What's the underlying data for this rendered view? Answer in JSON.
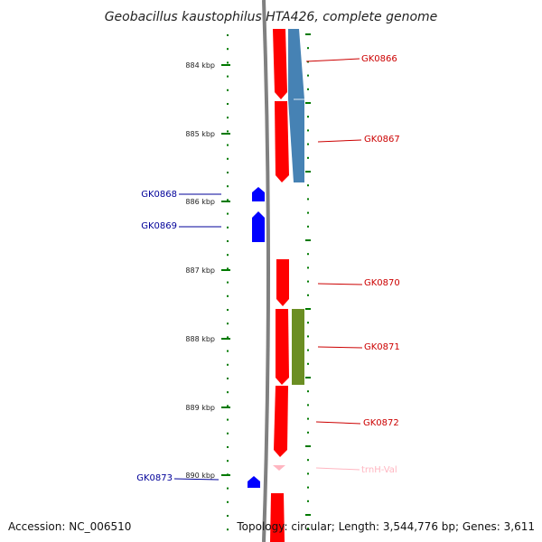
{
  "title": "Geobacillus kaustophilus HTA426, complete genome",
  "footer": {
    "accession": "Accession: NC_006510",
    "topology": "Topology: circular; Length: 3,544,776 bp; Genes: 3,611"
  },
  "colors": {
    "forward_gene": "#ff0000",
    "reverse_gene": "#0000ff",
    "blue_track": "#4682b4",
    "green_track": "#6b8e23",
    "trna": "#ffb6c1",
    "label_forward": "#cc0000",
    "label_reverse": "#000099",
    "tick_green": "#007a00",
    "backbone": "#808080"
  },
  "kbp_ticks": [
    {
      "label": "884 kbp",
      "pos": 884
    },
    {
      "label": "885 kbp",
      "pos": 885
    },
    {
      "label": "886 kbp",
      "pos": 886
    },
    {
      "label": "887 kbp",
      "pos": 887
    },
    {
      "label": "888 kbp",
      "pos": 888
    },
    {
      "label": "889 kbp",
      "pos": 889
    },
    {
      "label": "890 kbp",
      "pos": 890
    }
  ],
  "genes": [
    {
      "name": "GK0866",
      "strand": "forward",
      "side": "right"
    },
    {
      "name": "GK0867",
      "strand": "forward",
      "side": "right"
    },
    {
      "name": "GK0868",
      "strand": "reverse",
      "side": "left"
    },
    {
      "name": "GK0869",
      "strand": "reverse",
      "side": "left"
    },
    {
      "name": "GK0870",
      "strand": "forward",
      "side": "right"
    },
    {
      "name": "GK0871",
      "strand": "forward",
      "side": "right"
    },
    {
      "name": "GK0872",
      "strand": "forward",
      "side": "right"
    },
    {
      "name": "GK0873",
      "strand": "reverse",
      "side": "left"
    },
    {
      "name": "trnH-Val",
      "strand": "trna",
      "side": "right"
    }
  ]
}
